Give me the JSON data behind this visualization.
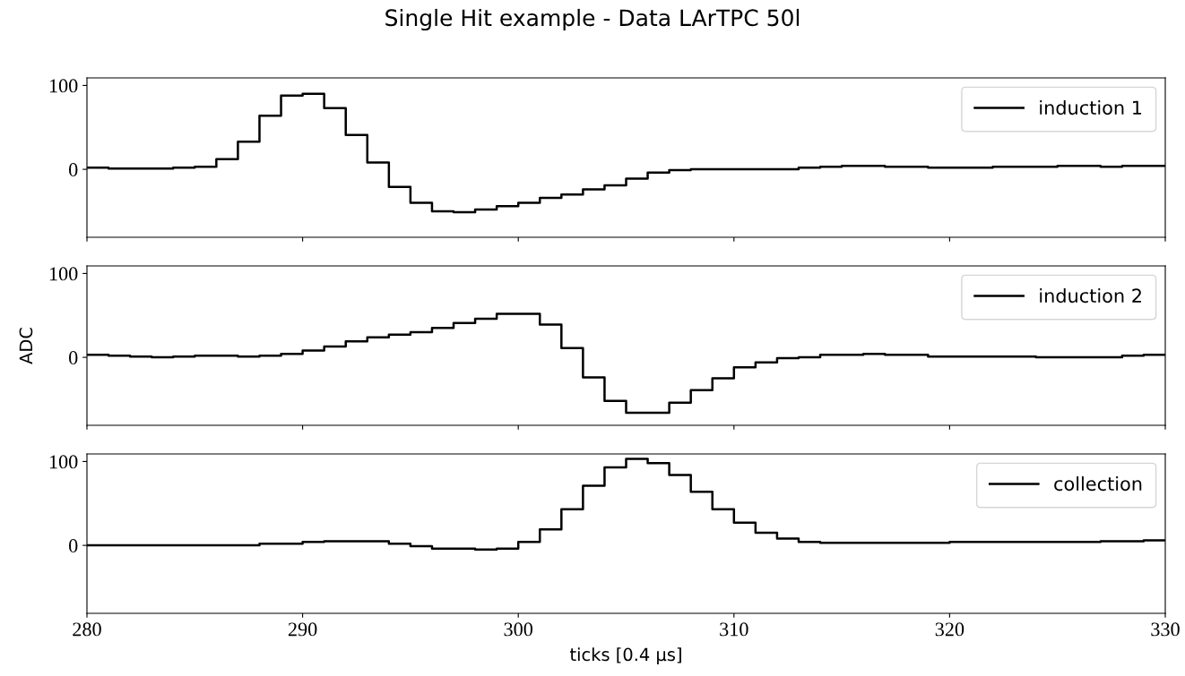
{
  "chart_data": [
    {
      "type": "step",
      "title": "Single Hit example - Data LArTPC 50l",
      "x": [
        280,
        281,
        282,
        283,
        284,
        285,
        286,
        287,
        288,
        289,
        290,
        291,
        292,
        293,
        294,
        295,
        296,
        297,
        298,
        299,
        300,
        301,
        302,
        303,
        304,
        305,
        306,
        307,
        308,
        309,
        310,
        311,
        312,
        313,
        314,
        315,
        316,
        317,
        318,
        319,
        320,
        321,
        322,
        323,
        324,
        325,
        326,
        327,
        328,
        329,
        330
      ],
      "series": [
        {
          "name": "induction 1",
          "color": "#000000",
          "values": [
            2,
            1,
            1,
            1,
            2,
            3,
            12,
            33,
            64,
            88,
            90,
            73,
            41,
            8,
            -21,
            -40,
            -50,
            -51,
            -48,
            -44,
            -40,
            -34,
            -30,
            -24,
            -19,
            -11,
            -4,
            -1,
            0,
            0,
            0,
            0,
            0,
            2,
            3,
            4,
            4,
            3,
            3,
            2,
            2,
            2,
            3,
            3,
            3,
            4,
            4,
            3,
            4,
            4,
            4
          ]
        }
      ],
      "xlim": [
        280,
        330
      ],
      "xticks": [
        {
          "value": 280,
          "label": null
        },
        {
          "value": 290,
          "label": null
        },
        {
          "value": 300,
          "label": null
        },
        {
          "value": 310,
          "label": null
        },
        {
          "value": 320,
          "label": null
        },
        {
          "value": 330,
          "label": null
        }
      ],
      "ylim": [
        -81,
        109
      ],
      "yticks": [
        0,
        100
      ],
      "tick_labels": "y",
      "legend": "top right",
      "grid": false
    },
    {
      "type": "step",
      "ylabel": "ADC",
      "x": [
        280,
        281,
        282,
        283,
        284,
        285,
        286,
        287,
        288,
        289,
        290,
        291,
        292,
        293,
        294,
        295,
        296,
        297,
        298,
        299,
        300,
        301,
        302,
        303,
        304,
        305,
        306,
        307,
        308,
        309,
        310,
        311,
        312,
        313,
        314,
        315,
        316,
        317,
        318,
        319,
        320,
        321,
        322,
        323,
        324,
        325,
        326,
        327,
        328,
        329,
        330
      ],
      "series": [
        {
          "name": "induction 2",
          "color": "#000000",
          "values": [
            3,
            2,
            1,
            0,
            1,
            2,
            2,
            1,
            2,
            4,
            8,
            13,
            19,
            24,
            27,
            30,
            35,
            41,
            46,
            52,
            52,
            39,
            11,
            -24,
            -52,
            -66,
            -66,
            -54,
            -39,
            -25,
            -12,
            -6,
            -1,
            0,
            3,
            3,
            4,
            3,
            3,
            1,
            1,
            1,
            1,
            1,
            0,
            0,
            0,
            0,
            2,
            3,
            3
          ]
        }
      ],
      "xlim": [
        280,
        330
      ],
      "xticks": [
        {
          "value": 280,
          "label": null
        },
        {
          "value": 290,
          "label": null
        },
        {
          "value": 300,
          "label": null
        },
        {
          "value": 310,
          "label": null
        },
        {
          "value": 320,
          "label": null
        },
        {
          "value": 330,
          "label": null
        }
      ],
      "ylim": [
        -81,
        109
      ],
      "yticks": [
        0,
        100
      ],
      "tick_labels": "y",
      "legend": "top right",
      "grid": false
    },
    {
      "type": "step",
      "xlabel": "ticks [0.4 μs]",
      "x": [
        280,
        281,
        282,
        283,
        284,
        285,
        286,
        287,
        288,
        289,
        290,
        291,
        292,
        293,
        294,
        295,
        296,
        297,
        298,
        299,
        300,
        301,
        302,
        303,
        304,
        305,
        306,
        307,
        308,
        309,
        310,
        311,
        312,
        313,
        314,
        315,
        316,
        317,
        318,
        319,
        320,
        321,
        322,
        323,
        324,
        325,
        326,
        327,
        328,
        329,
        330
      ],
      "series": [
        {
          "name": "collection",
          "color": "#000000",
          "values": [
            0,
            0,
            0,
            0,
            0,
            0,
            0,
            0,
            2,
            2,
            4,
            5,
            5,
            5,
            2,
            -1,
            -4,
            -4,
            -5,
            -4,
            4,
            19,
            43,
            71,
            93,
            103,
            98,
            84,
            64,
            43,
            27,
            15,
            8,
            4,
            3,
            3,
            3,
            3,
            3,
            3,
            4,
            4,
            4,
            4,
            4,
            4,
            4,
            5,
            5,
            6,
            6
          ]
        }
      ],
      "xlim": [
        280,
        330
      ],
      "xticks": [
        280,
        290,
        300,
        310,
        320,
        330
      ],
      "ylim": [
        -81,
        109
      ],
      "yticks": [
        0,
        100
      ],
      "legend": "top right",
      "grid": false
    }
  ]
}
